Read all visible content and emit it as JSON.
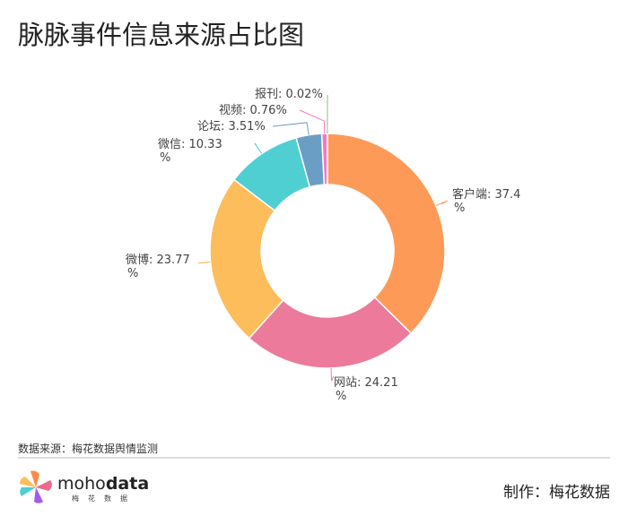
{
  "chart_data": {
    "type": "pie",
    "title": "脉脉事件信息来源占比图",
    "donut": true,
    "start": "top-clockwise",
    "slices": [
      {
        "name": "客户端",
        "value": 37.4,
        "label": "客户端: 37.4\n%",
        "color": "#fe9a57"
      },
      {
        "name": "网站",
        "value": 24.21,
        "label": "网站: 24.21\n%",
        "color": "#ec7a9b"
      },
      {
        "name": "微博",
        "value": 23.77,
        "label": "微博: 23.77\n%",
        "color": "#fdbd5a"
      },
      {
        "name": "微信",
        "value": 10.33,
        "label": "微信: 10.33\n%",
        "color": "#4fcfd1"
      },
      {
        "name": "论坛",
        "value": 3.51,
        "label": "论坛: 3.51%",
        "color": "#6a9ec5"
      },
      {
        "name": "视频",
        "value": 0.76,
        "label": "视频: 0.76%",
        "color": "#f27ac2"
      },
      {
        "name": "报刊",
        "value": 0.02,
        "label": "报刊: 0.02%",
        "color": "#8fbf73"
      }
    ]
  },
  "footer": {
    "source": "数据来源：梅花数据舆情监测",
    "brand_light": "moho",
    "brand_bold": "data",
    "brand_sub": "梅花数据",
    "maker": "制作：梅花数据"
  }
}
